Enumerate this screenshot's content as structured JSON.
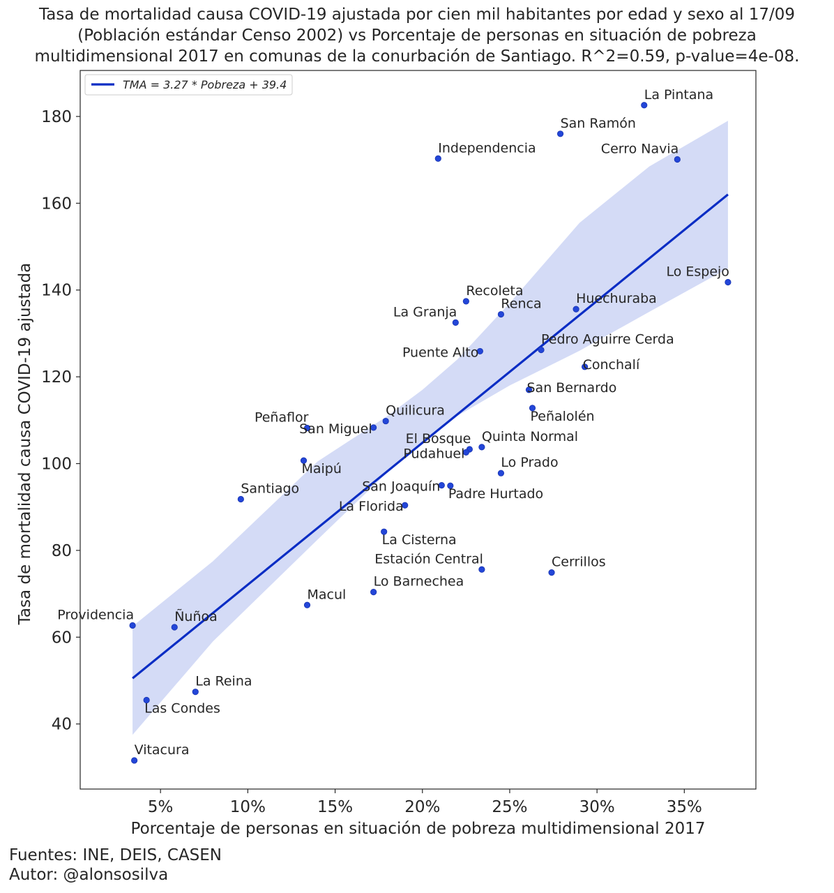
{
  "title_lines": [
    "Tasa de mortalidad causa COVID-19 ajustada por cien mil habitantes por edad y sexo al 17/09",
    "(Población estándar Censo 2002) vs Porcentaje de personas en situación de pobreza",
    "multidimensional 2017 en comunas de la conurbación de Santiago. R^2=0.59, p-value=4e-08."
  ],
  "footer": {
    "sources": "Fuentes: INE, DEIS, CASEN",
    "author": "Autor: @alonsosilva"
  },
  "chart_data": {
    "type": "scatter",
    "xlabel": "Porcentaje de personas en situación de pobreza multidimensional 2017",
    "ylabel": "Tasa de mortalidad causa COVID-19 ajustada",
    "xlim": [
      0.4,
      39.1
    ],
    "ylim": [
      25,
      190.6
    ],
    "x_unit": "%",
    "x_ticks": [
      5,
      10,
      15,
      20,
      25,
      30,
      35
    ],
    "x_tick_labels": [
      "5%",
      "10%",
      "15%",
      "20%",
      "25%",
      "30%",
      "35%"
    ],
    "y_ticks": [
      40,
      60,
      80,
      100,
      120,
      140,
      160,
      180
    ],
    "y_tick_labels": [
      "40",
      "60",
      "80",
      "100",
      "120",
      "140",
      "160",
      "180"
    ],
    "grid": false,
    "legend": {
      "placement": "top-left",
      "label": "TMA = 3.27 * Pobreza + 39.4"
    },
    "regression": {
      "slope": 3.27,
      "intercept": 39.4,
      "x_range": [
        3.4,
        37.5
      ]
    },
    "confidence_band": [
      {
        "x": 3.4,
        "lower": 37.5,
        "upper": 62.5
      },
      {
        "x": 8.0,
        "lower": 59.0,
        "upper": 77.5
      },
      {
        "x": 14.0,
        "lower": 82.5,
        "upper": 100.5
      },
      {
        "x": 18.0,
        "lower": 98.0,
        "upper": 111.0
      },
      {
        "x": 20.0,
        "lower": 104.5,
        "upper": 117.0
      },
      {
        "x": 22.0,
        "lower": 111.0,
        "upper": 124.0
      },
      {
        "x": 25.0,
        "lower": 118.0,
        "upper": 137.0
      },
      {
        "x": 29.0,
        "lower": 126.0,
        "upper": 155.5
      },
      {
        "x": 33.0,
        "lower": 135.0,
        "upper": 168.5
      },
      {
        "x": 37.5,
        "lower": 145.0,
        "upper": 179.0
      }
    ],
    "colors": {
      "points": "#2346d8",
      "line": "#0b2dc4",
      "band": "#d4dbf6"
    },
    "points": [
      {
        "name": "La Pintana",
        "x": 32.7,
        "y": 182.6,
        "label_pos": "above"
      },
      {
        "name": "San Ramón",
        "x": 27.9,
        "y": 176.0,
        "label_pos": "above"
      },
      {
        "name": "Independencia",
        "x": 20.9,
        "y": 170.3,
        "label_pos": "above"
      },
      {
        "name": "Cerro Navia",
        "x": 34.6,
        "y": 170.1,
        "label_pos": "above-left"
      },
      {
        "name": "Lo Espejo",
        "x": 37.5,
        "y": 141.8,
        "label_pos": "above-left"
      },
      {
        "name": "Recoleta",
        "x": 22.5,
        "y": 137.4,
        "label_pos": "above"
      },
      {
        "name": "Huechuraba",
        "x": 28.8,
        "y": 135.6,
        "label_pos": "above"
      },
      {
        "name": "Renca",
        "x": 24.5,
        "y": 134.4,
        "label_pos": "above"
      },
      {
        "name": "La Granja",
        "x": 21.9,
        "y": 132.5,
        "label_pos": "above-left"
      },
      {
        "name": "Pedro Aguirre Cerda",
        "x": 26.8,
        "y": 126.2,
        "label_pos": "above"
      },
      {
        "name": "Puente Alto",
        "x": 23.3,
        "y": 125.9,
        "label_pos": "left"
      },
      {
        "name": "Conchalí",
        "x": 29.3,
        "y": 122.3,
        "label_pos": "right"
      },
      {
        "name": "San Bernardo",
        "x": 26.1,
        "y": 117.0,
        "label_pos": "right"
      },
      {
        "name": "Peñalolén",
        "x": 26.3,
        "y": 112.8,
        "label_pos": "below"
      },
      {
        "name": "Quilicura",
        "x": 17.9,
        "y": 109.8,
        "label_pos": "above"
      },
      {
        "name": "Peñaflor",
        "x": 13.4,
        "y": 108.2,
        "label_pos": "above-left"
      },
      {
        "name": "San Miguel",
        "x": 17.2,
        "y": 108.3,
        "label_pos": "left"
      },
      {
        "name": "Quinta Normal",
        "x": 23.4,
        "y": 103.8,
        "label_pos": "above"
      },
      {
        "name": "El Bosque",
        "x": 22.7,
        "y": 103.3,
        "label_pos": "above-left"
      },
      {
        "name": "Pudahuel",
        "x": 22.5,
        "y": 102.6,
        "label_pos": "left"
      },
      {
        "name": "Maipú",
        "x": 13.2,
        "y": 100.7,
        "label_pos": "below"
      },
      {
        "name": "Lo Prado",
        "x": 24.5,
        "y": 97.8,
        "label_pos": "above"
      },
      {
        "name": "San Joaquín",
        "x": 21.1,
        "y": 95.0,
        "label_pos": "left"
      },
      {
        "name": "Padre Hurtado",
        "x": 21.6,
        "y": 94.9,
        "label_pos": "below"
      },
      {
        "name": "Santiago",
        "x": 9.6,
        "y": 91.8,
        "label_pos": "above"
      },
      {
        "name": "La Florida",
        "x": 19.0,
        "y": 90.4,
        "label_pos": "left"
      },
      {
        "name": "La Cisterna",
        "x": 17.8,
        "y": 84.3,
        "label_pos": "below"
      },
      {
        "name": "Estación Central",
        "x": 23.4,
        "y": 75.6,
        "label_pos": "above-left"
      },
      {
        "name": "Cerrillos",
        "x": 27.4,
        "y": 74.9,
        "label_pos": "above"
      },
      {
        "name": "Lo Barnechea",
        "x": 17.2,
        "y": 70.4,
        "label_pos": "above"
      },
      {
        "name": "Macul",
        "x": 13.4,
        "y": 67.4,
        "label_pos": "above"
      },
      {
        "name": "Providencia",
        "x": 3.4,
        "y": 62.7,
        "label_pos": "above-left"
      },
      {
        "name": "Ñuñoa",
        "x": 5.8,
        "y": 62.3,
        "label_pos": "above"
      },
      {
        "name": "La Reina",
        "x": 7.0,
        "y": 47.4,
        "label_pos": "above"
      },
      {
        "name": "Las Condes",
        "x": 4.2,
        "y": 45.5,
        "label_pos": "below"
      },
      {
        "name": "Vitacura",
        "x": 3.5,
        "y": 31.6,
        "label_pos": "above"
      }
    ]
  }
}
